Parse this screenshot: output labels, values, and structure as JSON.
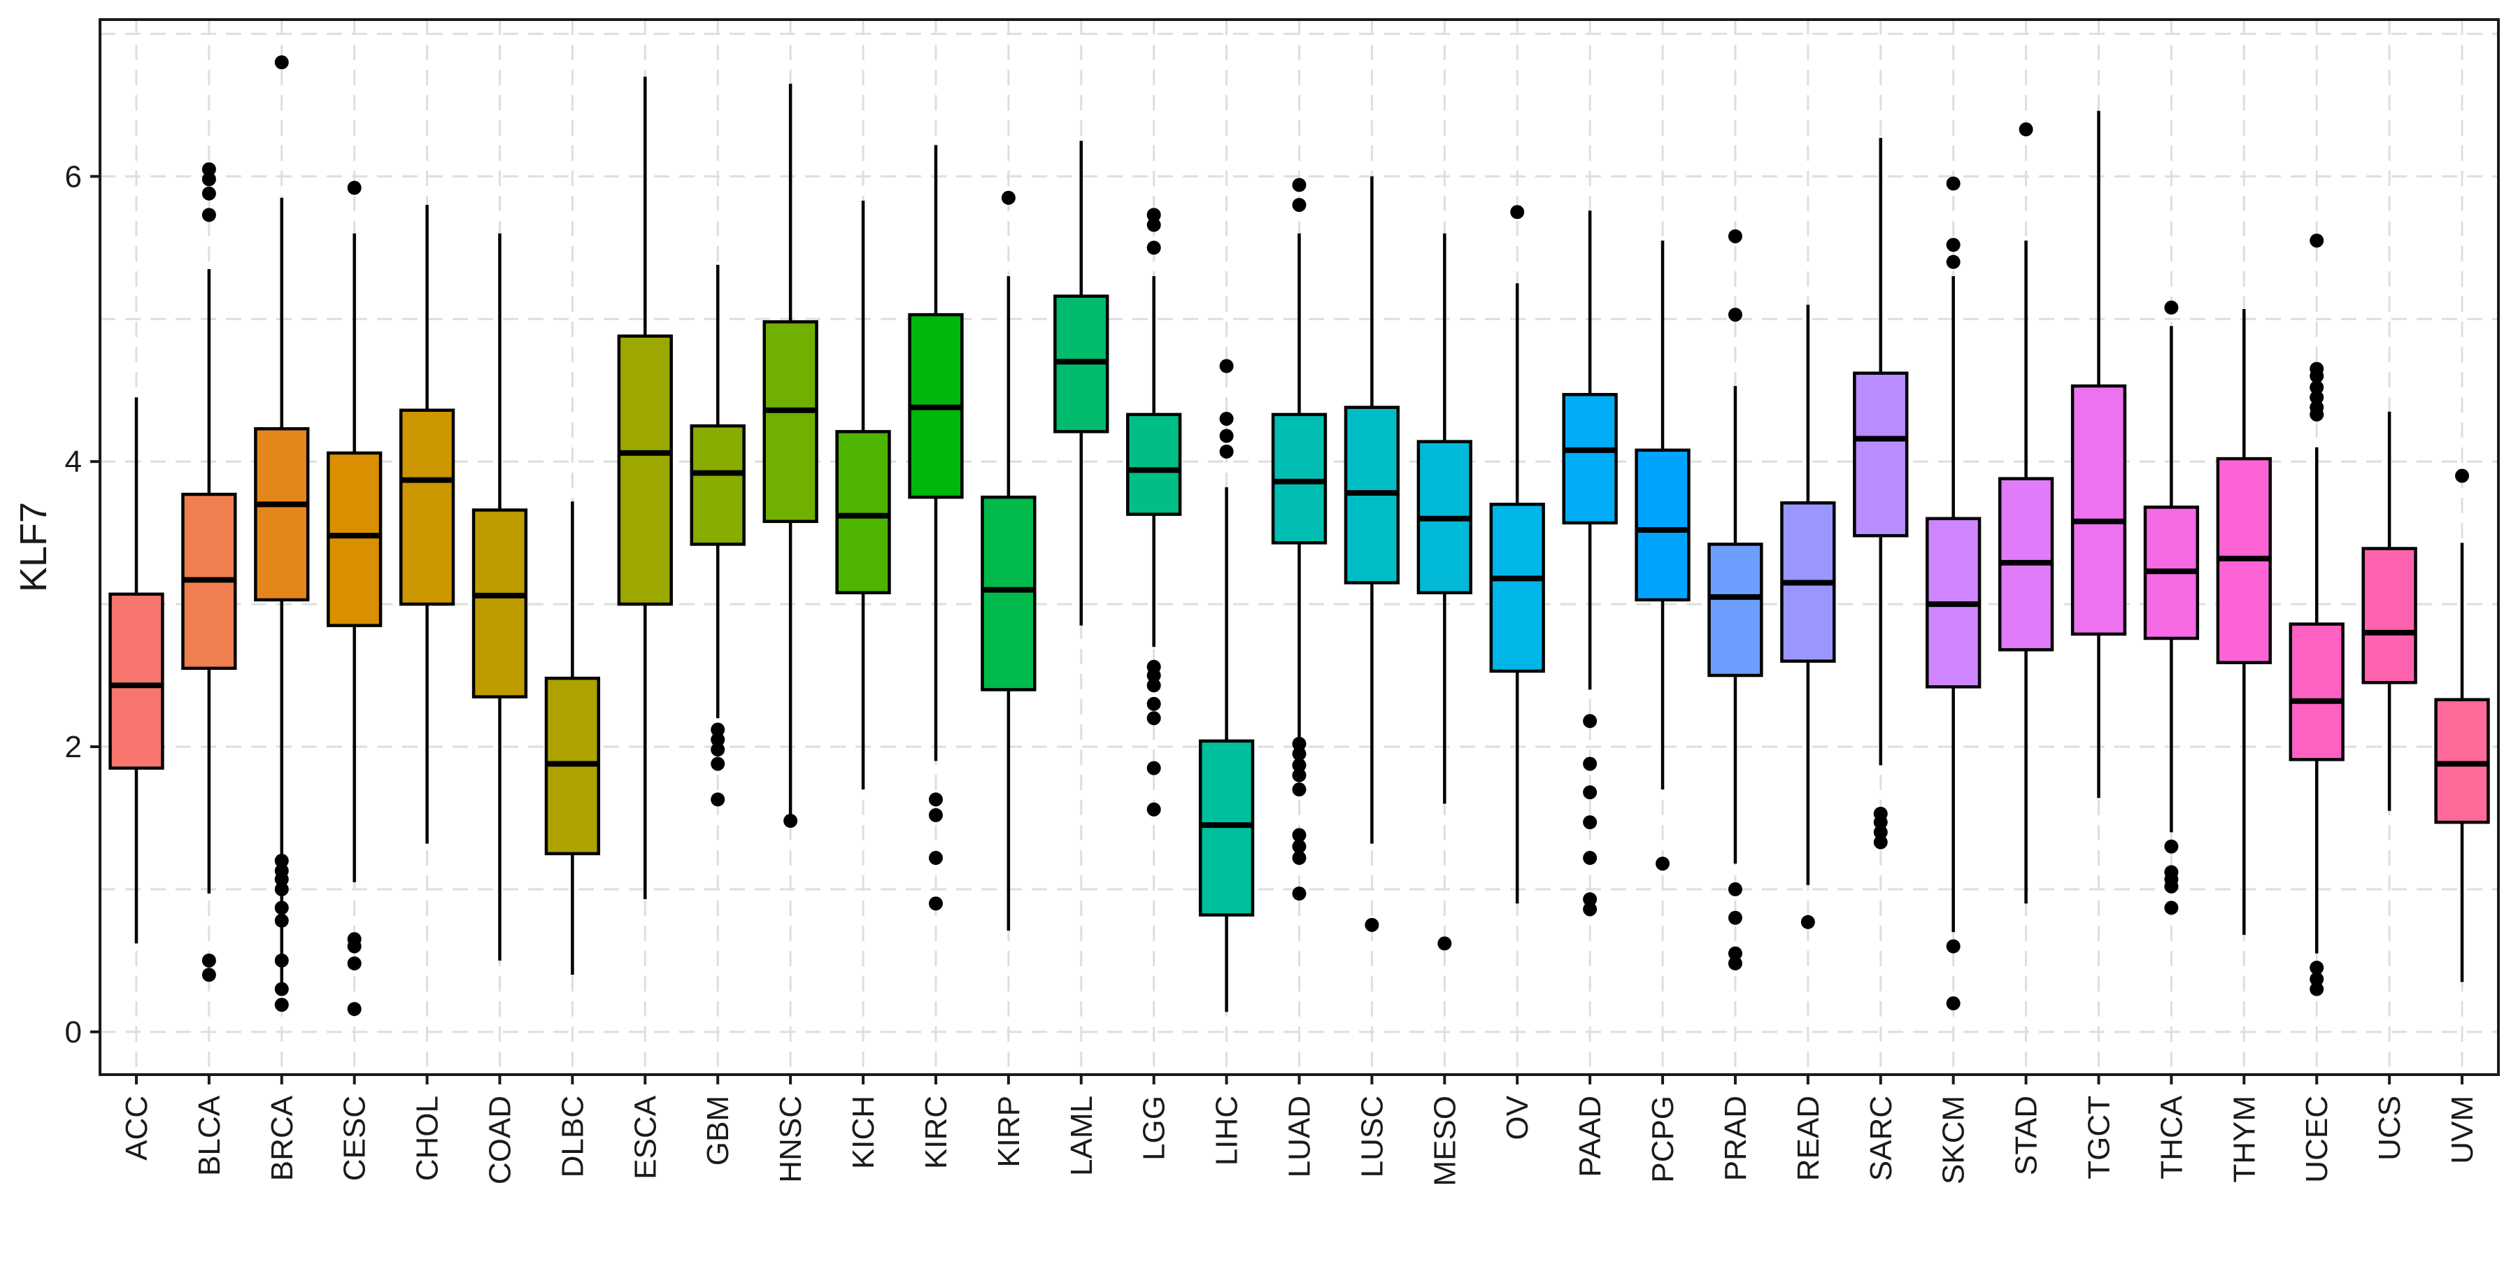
{
  "chart_data": {
    "type": "box",
    "title": "",
    "xlabel": "",
    "ylabel": "KLF7",
    "ylim": [
      -0.3,
      7.1
    ],
    "yticks": [
      0,
      2,
      4,
      6
    ],
    "grid": true,
    "legend": "none",
    "boxes": [
      {
        "category": "ACC",
        "color": "#F8766D",
        "min": 0.62,
        "q1": 1.85,
        "median": 2.43,
        "q3": 3.07,
        "max": 4.45,
        "outliers": []
      },
      {
        "category": "BLCA",
        "color": "#F07F50",
        "min": 0.97,
        "q1": 2.55,
        "median": 3.17,
        "q3": 3.77,
        "max": 5.35,
        "outliers": [
          6.05,
          5.98,
          5.88,
          5.73,
          0.5,
          0.4
        ]
      },
      {
        "category": "BRCA",
        "color": "#E5861B",
        "min": 0.3,
        "q1": 3.03,
        "median": 3.7,
        "q3": 4.23,
        "max": 5.85,
        "outliers": [
          6.8,
          1.2,
          1.13,
          1.07,
          1.0,
          0.87,
          0.78,
          0.5,
          0.3,
          0.19
        ]
      },
      {
        "category": "CESC",
        "color": "#D98F00",
        "min": 1.05,
        "q1": 2.85,
        "median": 3.48,
        "q3": 4.06,
        "max": 5.6,
        "outliers": [
          5.92,
          0.65,
          0.6,
          0.48,
          0.16
        ]
      },
      {
        "category": "CHOL",
        "color": "#CC9600",
        "min": 1.32,
        "q1": 3.0,
        "median": 3.87,
        "q3": 4.36,
        "max": 5.8,
        "outliers": []
      },
      {
        "category": "COAD",
        "color": "#BE9C00",
        "min": 0.5,
        "q1": 2.35,
        "median": 3.06,
        "q3": 3.66,
        "max": 5.6,
        "outliers": []
      },
      {
        "category": "DLBC",
        "color": "#AEA200",
        "min": 0.4,
        "q1": 1.25,
        "median": 1.88,
        "q3": 2.48,
        "max": 3.72,
        "outliers": []
      },
      {
        "category": "ESCA",
        "color": "#9CA700",
        "min": 0.93,
        "q1": 3.0,
        "median": 4.06,
        "q3": 4.88,
        "max": 6.7,
        "outliers": []
      },
      {
        "category": "GBM",
        "color": "#88AC00",
        "min": 2.2,
        "q1": 3.42,
        "median": 3.92,
        "q3": 4.25,
        "max": 5.38,
        "outliers": [
          2.12,
          2.05,
          1.98,
          1.88,
          1.63
        ]
      },
      {
        "category": "HNSC",
        "color": "#6FB000",
        "min": 1.48,
        "q1": 3.58,
        "median": 4.36,
        "q3": 4.98,
        "max": 6.65,
        "outliers": [
          1.48
        ]
      },
      {
        "category": "KICH",
        "color": "#4DB400",
        "min": 1.7,
        "q1": 3.08,
        "median": 3.62,
        "q3": 4.21,
        "max": 5.83,
        "outliers": []
      },
      {
        "category": "KIRC",
        "color": "#00B70C",
        "min": 1.9,
        "q1": 3.75,
        "median": 4.38,
        "q3": 5.03,
        "max": 6.22,
        "outliers": [
          1.63,
          1.52,
          1.22,
          0.9
        ]
      },
      {
        "category": "KIRP",
        "color": "#00BA4B",
        "min": 0.71,
        "q1": 2.4,
        "median": 3.1,
        "q3": 3.75,
        "max": 5.3,
        "outliers": [
          5.85
        ]
      },
      {
        "category": "LAML",
        "color": "#00BC6C",
        "min": 2.85,
        "q1": 4.21,
        "median": 4.7,
        "q3": 5.16,
        "max": 6.25,
        "outliers": []
      },
      {
        "category": "LGG",
        "color": "#00BE86",
        "min": 2.7,
        "q1": 3.63,
        "median": 3.94,
        "q3": 4.33,
        "max": 5.3,
        "outliers": [
          5.73,
          5.66,
          5.5,
          2.56,
          2.5,
          2.43,
          2.3,
          2.2,
          1.85,
          1.56
        ]
      },
      {
        "category": "LIHC",
        "color": "#00BF9C",
        "min": 0.14,
        "q1": 0.82,
        "median": 1.45,
        "q3": 2.04,
        "max": 3.82,
        "outliers": [
          4.67,
          4.3,
          4.18,
          4.07
        ]
      },
      {
        "category": "LUAD",
        "color": "#00BFB2",
        "min": 2.05,
        "q1": 3.43,
        "median": 3.86,
        "q3": 4.33,
        "max": 5.6,
        "outliers": [
          5.94,
          5.8,
          2.02,
          1.95,
          1.87,
          1.8,
          1.7,
          1.38,
          1.3,
          1.22,
          0.97
        ]
      },
      {
        "category": "LUSC",
        "color": "#00BDC5",
        "min": 1.32,
        "q1": 3.15,
        "median": 3.78,
        "q3": 4.38,
        "max": 6.0,
        "outliers": [
          0.75
        ]
      },
      {
        "category": "MESO",
        "color": "#00BAD8",
        "min": 1.6,
        "q1": 3.08,
        "median": 3.6,
        "q3": 4.14,
        "max": 5.6,
        "outliers": [
          0.62
        ]
      },
      {
        "category": "OV",
        "color": "#00B5E8",
        "min": 0.9,
        "q1": 2.53,
        "median": 3.18,
        "q3": 3.7,
        "max": 5.25,
        "outliers": [
          5.75
        ]
      },
      {
        "category": "PAAD",
        "color": "#00ADF6",
        "min": 2.4,
        "q1": 3.57,
        "median": 4.08,
        "q3": 4.47,
        "max": 5.76,
        "outliers": [
          2.18,
          1.88,
          1.68,
          1.47,
          1.22,
          0.93,
          0.86
        ]
      },
      {
        "category": "PCPG",
        "color": "#00A4FF",
        "min": 1.7,
        "q1": 3.03,
        "median": 3.52,
        "q3": 4.08,
        "max": 5.55,
        "outliers": [
          1.18
        ]
      },
      {
        "category": "PRAD",
        "color": "#6D9EFF",
        "min": 1.18,
        "q1": 2.5,
        "median": 3.05,
        "q3": 3.42,
        "max": 4.53,
        "outliers": [
          5.58,
          5.03,
          1.0,
          0.8,
          0.55,
          0.48
        ]
      },
      {
        "category": "READ",
        "color": "#9A96FF",
        "min": 1.03,
        "q1": 2.6,
        "median": 3.15,
        "q3": 3.71,
        "max": 5.1,
        "outliers": [
          0.77
        ]
      },
      {
        "category": "SARC",
        "color": "#B98DFF",
        "min": 1.87,
        "q1": 3.48,
        "median": 4.16,
        "q3": 4.62,
        "max": 6.27,
        "outliers": [
          1.53,
          1.47,
          1.4,
          1.33
        ]
      },
      {
        "category": "SKCM",
        "color": "#CF85FF",
        "min": 0.7,
        "q1": 2.42,
        "median": 3.0,
        "q3": 3.6,
        "max": 5.3,
        "outliers": [
          5.95,
          5.52,
          5.4,
          0.6,
          0.2
        ]
      },
      {
        "category": "STAD",
        "color": "#E07CF9",
        "min": 0.9,
        "q1": 2.68,
        "median": 3.29,
        "q3": 3.88,
        "max": 5.55,
        "outliers": [
          6.33
        ]
      },
      {
        "category": "TGCT",
        "color": "#EC72EF",
        "min": 1.64,
        "q1": 2.79,
        "median": 3.58,
        "q3": 4.53,
        "max": 6.46,
        "outliers": []
      },
      {
        "category": "THCA",
        "color": "#F66AE3",
        "min": 1.4,
        "q1": 2.76,
        "median": 3.23,
        "q3": 3.68,
        "max": 4.95,
        "outliers": [
          5.08,
          1.3,
          1.12,
          1.07,
          1.02,
          0.87
        ]
      },
      {
        "category": "THYM",
        "color": "#FC64D5",
        "min": 0.68,
        "q1": 2.59,
        "median": 3.32,
        "q3": 4.02,
        "max": 5.07,
        "outliers": []
      },
      {
        "category": "UCEC",
        "color": "#FF61C3",
        "min": 0.55,
        "q1": 1.91,
        "median": 2.32,
        "q3": 2.86,
        "max": 4.1,
        "outliers": [
          5.55,
          4.65,
          4.6,
          4.52,
          4.45,
          4.38,
          4.33,
          0.45,
          0.37,
          0.3
        ]
      },
      {
        "category": "UCS",
        "color": "#FF63AF",
        "min": 1.55,
        "q1": 2.45,
        "median": 2.8,
        "q3": 3.39,
        "max": 4.35,
        "outliers": []
      },
      {
        "category": "UVM",
        "color": "#FF6A98",
        "min": 0.35,
        "q1": 1.47,
        "median": 1.88,
        "q3": 2.33,
        "max": 3.43,
        "outliers": [
          3.9
        ]
      }
    ]
  }
}
